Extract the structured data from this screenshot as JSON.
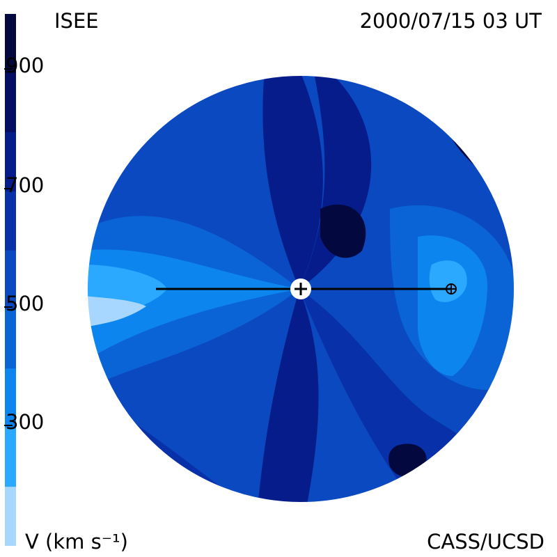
{
  "header": {
    "instrument": "ISEE",
    "timestamp": "2000/07/15 03 UT"
  },
  "footer": {
    "unit_label": "V (km s⁻¹)",
    "credit": "CASS/UCSD"
  },
  "colorbar": {
    "levels": [
      {
        "color": "#a7d7ff"
      },
      {
        "color": "#2ba8ff"
      },
      {
        "color": "#0c86ee"
      },
      {
        "color": "#0b64d6"
      },
      {
        "color": "#0a49c0"
      },
      {
        "color": "#0830a8"
      },
      {
        "color": "#061c8a"
      },
      {
        "color": "#040f62"
      },
      {
        "color": "#03083e"
      }
    ],
    "ticks": [
      "900",
      "700",
      "500",
      "300"
    ]
  },
  "chart_data": {
    "type": "heatmap",
    "title": "ISEE",
    "subtitle": "2000/07/15 03 UT",
    "colorbar_label": "V (km s⁻¹)",
    "colorbar_ticks": [
      900,
      700,
      500,
      300
    ]
  }
}
